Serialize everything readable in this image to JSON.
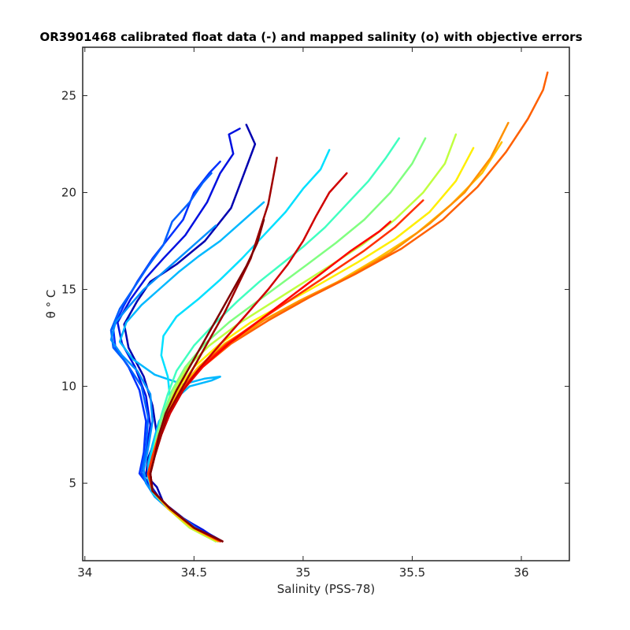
{
  "chart_data": {
    "type": "line",
    "title": "OR3901468 calibrated float data (-) and mapped salinity (o) with objective errors",
    "xlabel": "Salinity (PSS-78)",
    "ylabel": "θ ° C",
    "xlim": [
      33.99,
      36.22
    ],
    "ylim": [
      1.0,
      27.5
    ],
    "xticks": [
      34,
      34.5,
      35,
      35.5,
      36
    ],
    "xtick_labels": [
      "34",
      "34.5",
      "35",
      "35.5",
      "36"
    ],
    "yticks": [
      5,
      10,
      15,
      20,
      25
    ],
    "ytick_labels": [
      "5",
      "10",
      "15",
      "20",
      "25"
    ],
    "grid": false,
    "legend": "none",
    "colormap": [
      "#00008f",
      "#0000ff",
      "#0080ff",
      "#00ffff",
      "#80ff80",
      "#ffff00",
      "#ff8000",
      "#ff0000",
      "#800000"
    ],
    "series": [
      {
        "color": "#0000b0",
        "x": [
          34.63,
          34.55,
          34.45,
          34.36,
          34.33,
          34.28,
          34.29,
          34.33,
          34.31,
          34.27,
          34.2,
          34.18,
          34.24,
          34.3,
          34.42,
          34.55,
          34.67,
          34.73,
          34.78,
          34.74
        ],
        "y": [
          2.0,
          2.5,
          3.2,
          4.0,
          4.8,
          5.4,
          6.3,
          7.5,
          9.0,
          10.5,
          12.0,
          13.2,
          14.4,
          15.4,
          16.3,
          17.5,
          19.2,
          21.0,
          22.5,
          23.5
        ]
      },
      {
        "color": "#0010e0",
        "x": [
          34.62,
          34.54,
          34.43,
          34.35,
          34.3,
          34.26,
          34.28,
          34.3,
          34.28,
          34.23,
          34.17,
          34.15,
          34.21,
          34.28,
          34.36,
          34.46,
          34.56,
          34.62,
          34.68,
          34.66,
          34.71
        ],
        "y": [
          2.0,
          2.6,
          3.3,
          4.1,
          4.9,
          5.5,
          6.5,
          8.0,
          9.5,
          11.0,
          12.2,
          13.3,
          14.5,
          15.6,
          16.6,
          17.8,
          19.5,
          21.0,
          22.0,
          23.0,
          23.3
        ]
      },
      {
        "color": "#0030ff",
        "x": [
          34.62,
          34.52,
          34.42,
          34.34,
          34.29,
          34.25,
          34.27,
          34.28,
          34.25,
          34.2,
          34.14,
          34.13,
          34.18,
          34.24,
          34.31,
          34.38,
          34.45,
          34.5,
          34.57,
          34.62
        ],
        "y": [
          2.0,
          2.6,
          3.4,
          4.2,
          4.9,
          5.5,
          6.6,
          8.2,
          9.8,
          11.0,
          12.0,
          13.0,
          14.2,
          15.4,
          16.6,
          17.6,
          18.6,
          20.0,
          21.0,
          21.6
        ]
      },
      {
        "color": "#0060ff",
        "x": [
          34.61,
          34.51,
          34.41,
          34.33,
          34.28,
          34.26,
          34.28,
          34.29,
          34.26,
          34.19,
          34.13,
          34.12,
          34.16,
          34.22,
          34.29,
          34.36,
          34.4,
          34.48,
          34.54,
          34.58
        ],
        "y": [
          2.0,
          2.7,
          3.5,
          4.3,
          5.0,
          5.6,
          6.8,
          8.4,
          10.0,
          11.2,
          12.0,
          12.9,
          14.0,
          15.0,
          16.2,
          17.3,
          18.5,
          19.5,
          20.5,
          21.0
        ]
      },
      {
        "color": "#0090ff",
        "x": [
          34.61,
          34.5,
          34.4,
          34.32,
          34.28,
          34.27,
          34.29,
          34.31,
          34.3,
          34.24,
          34.17,
          34.12,
          34.14,
          34.2,
          34.27,
          34.35,
          34.43,
          34.52,
          34.6
        ],
        "y": [
          2.0,
          2.7,
          3.5,
          4.3,
          5.0,
          5.7,
          6.8,
          8.2,
          9.6,
          10.8,
          11.6,
          12.4,
          13.3,
          14.1,
          15.0,
          15.8,
          16.6,
          17.5,
          18.3
        ]
      },
      {
        "color": "#00b8ff",
        "x": [
          34.6,
          34.5,
          34.4,
          34.32,
          34.29,
          34.29,
          34.31,
          34.34,
          34.4,
          34.48,
          34.58,
          34.62,
          34.55,
          34.45,
          34.32,
          34.22,
          34.16,
          34.19,
          34.26,
          34.34,
          34.43,
          34.52,
          34.62,
          34.72,
          34.82
        ],
        "y": [
          2.0,
          2.7,
          3.6,
          4.4,
          5.2,
          6.0,
          7.0,
          8.2,
          9.2,
          10.0,
          10.3,
          10.5,
          10.4,
          10.1,
          10.6,
          11.4,
          12.3,
          13.3,
          14.2,
          15.0,
          15.9,
          16.7,
          17.5,
          18.5,
          19.5
        ]
      },
      {
        "color": "#00e0ff",
        "x": [
          34.6,
          34.49,
          34.39,
          34.31,
          34.29,
          34.3,
          34.32,
          34.35,
          34.39,
          34.38,
          34.35,
          34.36,
          34.42,
          34.52,
          34.62,
          34.72,
          34.82,
          34.92,
          35.0,
          35.08,
          35.12
        ],
        "y": [
          2.0,
          2.7,
          3.6,
          4.5,
          5.3,
          6.2,
          7.2,
          8.3,
          9.4,
          10.5,
          11.6,
          12.6,
          13.6,
          14.5,
          15.5,
          16.6,
          17.8,
          19.0,
          20.2,
          21.2,
          22.2
        ]
      },
      {
        "color": "#40ffc0",
        "x": [
          34.6,
          34.49,
          34.38,
          34.31,
          34.29,
          34.31,
          34.33,
          34.35,
          34.38,
          34.42,
          34.5,
          34.6,
          34.7,
          34.8,
          34.9,
          35.0,
          35.1,
          35.2,
          35.3,
          35.38,
          35.44
        ],
        "y": [
          2.0,
          2.7,
          3.7,
          4.6,
          5.4,
          6.3,
          7.4,
          8.5,
          9.6,
          10.8,
          12.1,
          13.3,
          14.4,
          15.4,
          16.3,
          17.2,
          18.2,
          19.4,
          20.6,
          21.8,
          22.8
        ]
      },
      {
        "color": "#80ff80",
        "x": [
          34.6,
          34.48,
          34.38,
          34.31,
          34.29,
          34.31,
          34.33,
          34.36,
          34.4,
          34.46,
          34.55,
          34.66,
          34.78,
          34.9,
          35.02,
          35.15,
          35.28,
          35.4,
          35.5,
          35.56
        ],
        "y": [
          2.0,
          2.7,
          3.7,
          4.6,
          5.5,
          6.4,
          7.5,
          8.6,
          9.8,
          11.0,
          12.2,
          13.3,
          14.3,
          15.3,
          16.3,
          17.4,
          18.6,
          20.0,
          21.5,
          22.8
        ]
      },
      {
        "color": "#c0ff40",
        "x": [
          34.6,
          34.48,
          34.38,
          34.31,
          34.29,
          34.31,
          34.34,
          34.37,
          34.41,
          34.47,
          34.57,
          34.7,
          34.84,
          34.98,
          35.12,
          35.27,
          35.42,
          35.55,
          35.65,
          35.7
        ],
        "y": [
          2.0,
          2.7,
          3.7,
          4.6,
          5.5,
          6.4,
          7.5,
          8.6,
          9.8,
          11.0,
          12.1,
          13.2,
          14.2,
          15.2,
          16.2,
          17.3,
          18.6,
          20.0,
          21.5,
          23.0
        ]
      },
      {
        "color": "#ffee00",
        "x": [
          34.61,
          34.49,
          34.38,
          34.31,
          34.29,
          34.31,
          34.34,
          34.37,
          34.42,
          34.5,
          34.62,
          34.76,
          34.92,
          35.08,
          35.25,
          35.42,
          35.58,
          35.7,
          35.78
        ],
        "y": [
          2.0,
          2.7,
          3.7,
          4.6,
          5.5,
          6.4,
          7.5,
          8.6,
          9.8,
          11.0,
          12.2,
          13.3,
          14.3,
          15.3,
          16.4,
          17.6,
          19.0,
          20.6,
          22.3
        ]
      },
      {
        "color": "#ffc000",
        "x": [
          34.61,
          34.49,
          34.38,
          34.31,
          34.29,
          34.31,
          34.34,
          34.38,
          34.43,
          34.52,
          34.64,
          34.8,
          34.98,
          35.16,
          35.34,
          35.52,
          35.68,
          35.82,
          35.91
        ],
        "y": [
          2.0,
          2.7,
          3.7,
          4.6,
          5.5,
          6.4,
          7.5,
          8.6,
          9.8,
          11.0,
          12.2,
          13.3,
          14.4,
          15.4,
          16.6,
          17.9,
          19.4,
          21.0,
          22.6
        ]
      },
      {
        "color": "#ff9000",
        "x": [
          34.62,
          34.5,
          34.39,
          34.31,
          34.29,
          34.31,
          34.34,
          34.38,
          34.44,
          34.53,
          34.66,
          34.82,
          35.0,
          35.2,
          35.4,
          35.58,
          35.74,
          35.86,
          35.94
        ],
        "y": [
          2.0,
          2.7,
          3.7,
          4.6,
          5.5,
          6.4,
          7.5,
          8.6,
          9.8,
          11.0,
          12.2,
          13.4,
          14.5,
          15.6,
          16.9,
          18.4,
          20.0,
          21.8,
          23.6
        ]
      },
      {
        "color": "#ff6000",
        "x": [
          34.62,
          34.5,
          34.39,
          34.31,
          34.29,
          34.31,
          34.34,
          34.38,
          34.44,
          34.54,
          34.67,
          34.84,
          35.03,
          35.24,
          35.45,
          35.64,
          35.8,
          35.93,
          36.03,
          36.1,
          36.12
        ],
        "y": [
          2.0,
          2.7,
          3.7,
          4.6,
          5.5,
          6.4,
          7.5,
          8.6,
          9.8,
          11.0,
          12.2,
          13.4,
          14.6,
          15.8,
          17.1,
          18.6,
          20.3,
          22.1,
          23.8,
          25.3,
          26.2
        ]
      },
      {
        "color": "#ff3000",
        "x": [
          34.62,
          34.5,
          34.39,
          34.31,
          34.29,
          34.31,
          34.34,
          34.38,
          34.44,
          34.53,
          34.65,
          34.8,
          34.96,
          35.12,
          35.28,
          35.42,
          35.55
        ],
        "y": [
          2.0,
          2.7,
          3.7,
          4.6,
          5.5,
          6.4,
          7.5,
          8.6,
          9.8,
          11.0,
          12.2,
          13.4,
          14.6,
          15.8,
          17.0,
          18.2,
          19.6
        ]
      },
      {
        "color": "#ff0000",
        "x": [
          34.63,
          34.5,
          34.39,
          34.31,
          34.3,
          34.32,
          34.35,
          34.39,
          34.45,
          34.54,
          34.66,
          34.8,
          34.94,
          35.08,
          35.22,
          35.35,
          35.4
        ],
        "y": [
          2.0,
          2.7,
          3.7,
          4.6,
          5.5,
          6.4,
          7.5,
          8.6,
          9.8,
          11.0,
          12.2,
          13.4,
          14.6,
          15.8,
          17.0,
          18.0,
          18.5
        ]
      },
      {
        "color": "#d00000",
        "x": [
          34.63,
          34.5,
          34.39,
          34.31,
          34.3,
          34.32,
          34.35,
          34.39,
          34.45,
          34.53,
          34.63,
          34.74,
          34.84,
          34.93,
          35.0,
          35.06,
          35.12,
          35.2
        ],
        "y": [
          2.0,
          2.7,
          3.7,
          4.6,
          5.5,
          6.4,
          7.5,
          8.6,
          9.8,
          11.0,
          12.3,
          13.7,
          15.0,
          16.3,
          17.5,
          18.8,
          20.0,
          21.0
        ]
      },
      {
        "color": "#a00000",
        "x": [
          34.63,
          34.5,
          34.39,
          34.31,
          34.3,
          34.32,
          34.35,
          34.38,
          34.44,
          34.5,
          34.57,
          34.64,
          34.7,
          34.76,
          34.8,
          34.84,
          34.86,
          34.88
        ],
        "y": [
          2.0,
          2.7,
          3.7,
          4.6,
          5.5,
          6.4,
          7.5,
          8.6,
          9.8,
          11.0,
          12.4,
          13.8,
          15.2,
          16.6,
          18.0,
          19.4,
          20.6,
          21.8
        ]
      },
      {
        "color": "#800000",
        "x": [
          34.63,
          34.5,
          34.39,
          34.31,
          34.3,
          34.32,
          34.34,
          34.37,
          34.42,
          34.48,
          34.55,
          34.62,
          34.68,
          34.74,
          34.79,
          34.82
        ],
        "y": [
          2.0,
          2.7,
          3.7,
          4.6,
          5.5,
          6.4,
          7.5,
          8.6,
          9.8,
          11.0,
          12.4,
          13.8,
          15.0,
          16.2,
          17.4,
          18.6
        ]
      }
    ]
  }
}
